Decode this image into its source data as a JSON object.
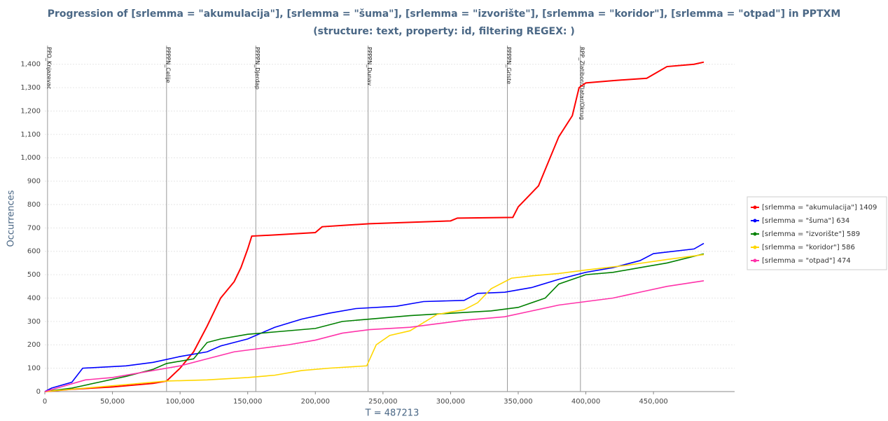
{
  "chart_data": {
    "type": "line",
    "title": "Progression of [srlemma = \"akumulacija\"], [srlemma = \"šuma\"], [srlemma = \"izvorište\"], [srlemma = \"koridor\"], [srlemma = \"otpad\"] in PPTXM",
    "subtitle": "(structure: text, property: id, filtering REGEX: )",
    "x_label": "T = 487213",
    "y_label": "Occurrences",
    "xlim": [
      0,
      510000
    ],
    "ylim": [
      0,
      1480
    ],
    "xticks": [
      0,
      {
        "value": 50000,
        "label": "50,000"
      },
      {
        "value": 100000,
        "label": "100,000"
      },
      {
        "value": 150000,
        "label": "150,000"
      },
      {
        "value": 200000,
        "label": "200,000"
      },
      {
        "value": 250000,
        "label": "250,000"
      },
      {
        "value": 300000,
        "label": "300,000"
      },
      {
        "value": 350000,
        "label": "350,000"
      },
      {
        "value": 400000,
        "label": "400,000"
      },
      {
        "value": 450000,
        "label": "450,000"
      }
    ],
    "yticks": [
      0,
      100,
      200,
      300,
      400,
      500,
      600,
      700,
      800,
      900,
      {
        "value": 1000,
        "label": "1,000"
      },
      {
        "value": 1100,
        "label": "1,100"
      },
      {
        "value": 1200,
        "label": "1,200"
      },
      {
        "value": 1300,
        "label": "1,300"
      },
      {
        "value": 1400,
        "label": "1,400"
      }
    ],
    "grid": true,
    "legend": "right",
    "annotations": [
      {
        "x": 2000,
        "label": "PPO_Knjazevac"
      },
      {
        "x": 90000,
        "label": "PPPPN_Celije"
      },
      {
        "x": 156000,
        "label": "PPPPN_Djerdap"
      },
      {
        "x": 239000,
        "label": "PPPPN_Dunav"
      },
      {
        "x": 342000,
        "label": "PPPPN_Grlste"
      },
      {
        "x": 396000,
        "label": "RPP_Zlatibor/Zlatar/Okrug"
      }
    ],
    "series": [
      {
        "name": "[srlemma = \"akumulacija\"] 1409",
        "color": "#ff0000",
        "x": [
          0,
          20000,
          50000,
          80000,
          90000,
          100000,
          110000,
          120000,
          130000,
          140000,
          145000,
          150000,
          153000,
          170000,
          200000,
          205000,
          240000,
          300000,
          305000,
          346000,
          350000,
          360000,
          365000,
          370000,
          380000,
          390000,
          395000,
          400000,
          420000,
          445000,
          460000,
          480000,
          487213
        ],
        "values": [
          0,
          10,
          20,
          35,
          45,
          100,
          170,
          280,
          400,
          470,
          530,
          610,
          665,
          670,
          680,
          705,
          718,
          730,
          742,
          745,
          790,
          850,
          880,
          950,
          1090,
          1180,
          1300,
          1320,
          1330,
          1340,
          1390,
          1400,
          1409
        ]
      },
      {
        "name": "[srlemma = \"šuma\"] 634",
        "color": "#0000ff",
        "x": [
          0,
          5000,
          20000,
          28000,
          60000,
          80000,
          100000,
          120000,
          130000,
          150000,
          170000,
          190000,
          210000,
          230000,
          260000,
          280000,
          310000,
          320000,
          340000,
          360000,
          380000,
          400000,
          420000,
          440000,
          450000,
          480000,
          487213
        ],
        "values": [
          0,
          15,
          40,
          100,
          110,
          125,
          150,
          170,
          195,
          225,
          275,
          310,
          335,
          355,
          365,
          385,
          390,
          420,
          425,
          445,
          480,
          510,
          530,
          560,
          590,
          610,
          634
        ]
      },
      {
        "name": "[srlemma = \"izvorište\"] 589",
        "color": "#008000",
        "x": [
          0,
          20000,
          40000,
          60000,
          80000,
          90000,
          110000,
          120000,
          130000,
          150000,
          170000,
          200000,
          220000,
          240000,
          270000,
          300000,
          330000,
          350000,
          370000,
          380000,
          400000,
          420000,
          440000,
          460000,
          487213
        ],
        "values": [
          0,
          15,
          40,
          65,
          95,
          120,
          140,
          210,
          225,
          245,
          255,
          270,
          300,
          310,
          325,
          335,
          345,
          360,
          400,
          460,
          500,
          510,
          530,
          550,
          589
        ]
      },
      {
        "name": "[srlemma = \"koridor\"] 586",
        "color": "#ffd700",
        "x": [
          0,
          30000,
          60000,
          90000,
          120000,
          150000,
          170000,
          190000,
          210000,
          238000,
          245000,
          255000,
          270000,
          290000,
          310000,
          320000,
          330000,
          345000,
          360000,
          380000,
          400000,
          430000,
          460000,
          487213
        ],
        "values": [
          0,
          15,
          30,
          45,
          50,
          60,
          70,
          90,
          100,
          110,
          200,
          240,
          260,
          330,
          350,
          380,
          440,
          485,
          495,
          505,
          520,
          540,
          565,
          586
        ]
      },
      {
        "name": "[srlemma = \"otpad\"] 474",
        "color": "#ff33aa",
        "x": [
          0,
          30000,
          50000,
          80000,
          100000,
          120000,
          140000,
          160000,
          180000,
          200000,
          220000,
          240000,
          270000,
          290000,
          310000,
          340000,
          360000,
          380000,
          400000,
          420000,
          440000,
          460000,
          487213
        ],
        "values": [
          0,
          50,
          60,
          90,
          110,
          140,
          170,
          185,
          200,
          220,
          250,
          265,
          275,
          290,
          305,
          320,
          345,
          370,
          385,
          400,
          425,
          450,
          474
        ]
      }
    ]
  }
}
